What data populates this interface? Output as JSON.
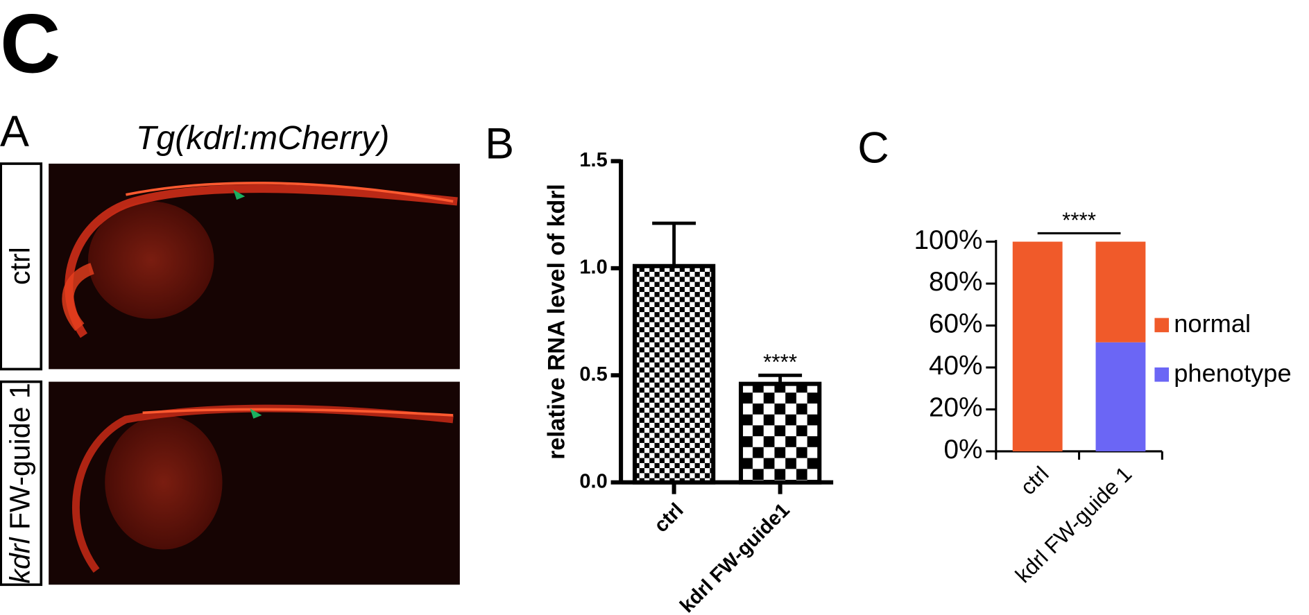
{
  "figure_letter": "C",
  "panel_a": {
    "label": "A",
    "title": "Tg(kdrl:mCherry)",
    "row_labels": [
      {
        "italic": "",
        "text": "ctrl"
      },
      {
        "italic": "kdrl",
        "text": "FW-guide 1"
      }
    ]
  },
  "chart_data": [
    {
      "type": "bar",
      "panel_label": "B",
      "ylabel": "relative RNA level of kdrl",
      "categories": [
        "ctrl",
        "kdrl FW-guide1"
      ],
      "values": [
        1.01,
        0.46
      ],
      "errors": [
        0.2,
        0.04
      ],
      "annotation": "****",
      "ylim": [
        0,
        1.5
      ],
      "yticks": [
        {
          "value": 0,
          "label": "0.0"
        },
        0.5,
        {
          "value": 1,
          "label": "1.0"
        },
        1.5
      ]
    },
    {
      "type": "stacked_bar",
      "panel_label": "C",
      "categories": [
        "ctrl",
        "kdrl FW-guide 1"
      ],
      "series": [
        {
          "name": "phenotype",
          "color": "#6b66f5",
          "values": [
            0,
            52
          ]
        },
        {
          "name": "normal",
          "color": "#f05a2a",
          "values": [
            100,
            48
          ]
        }
      ],
      "annotation": "****",
      "ylim": [
        0,
        100
      ],
      "yticks": [
        {
          "value": 0,
          "label": "0%"
        },
        {
          "value": 20,
          "label": "20%"
        },
        {
          "value": 40,
          "label": "40%"
        },
        {
          "value": 60,
          "label": "60%"
        },
        {
          "value": 80,
          "label": "80%"
        },
        {
          "value": 100,
          "label": "100%"
        }
      ]
    }
  ]
}
